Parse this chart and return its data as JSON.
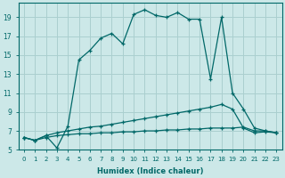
{
  "xlabel": "Humidex (Indice chaleur)",
  "background_color": "#cce8e8",
  "grid_color": "#aacfcf",
  "line_color": "#006868",
  "xlim": [
    -0.5,
    23.5
  ],
  "ylim": [
    5,
    20.5
  ],
  "xticks": [
    0,
    1,
    2,
    3,
    4,
    5,
    6,
    7,
    8,
    9,
    10,
    11,
    12,
    13,
    14,
    15,
    16,
    17,
    18,
    19,
    20,
    21,
    22,
    23
  ],
  "yticks": [
    5,
    7,
    9,
    11,
    13,
    15,
    17,
    19
  ],
  "series": [
    {
      "x": [
        0,
        1,
        2,
        3,
        4,
        5,
        6,
        7,
        8,
        9,
        10,
        11,
        12,
        13,
        14,
        15,
        16,
        17,
        18,
        19,
        20,
        21,
        22,
        23
      ],
      "y": [
        6.3,
        6.0,
        6.3,
        6.5,
        6.6,
        6.7,
        6.7,
        6.8,
        6.8,
        6.9,
        6.9,
        7.0,
        7.0,
        7.1,
        7.1,
        7.2,
        7.2,
        7.3,
        7.3,
        7.3,
        7.4,
        7.0,
        7.0,
        6.8
      ]
    },
    {
      "x": [
        0,
        1,
        2,
        3,
        4,
        5,
        6,
        7,
        8,
        9,
        10,
        11,
        12,
        13,
        14,
        15,
        16,
        17,
        18,
        19,
        20,
        21,
        22,
        23
      ],
      "y": [
        6.3,
        6.0,
        6.5,
        6.8,
        7.0,
        7.2,
        7.4,
        7.5,
        7.7,
        7.9,
        8.1,
        8.3,
        8.5,
        8.7,
        8.9,
        9.1,
        9.3,
        9.5,
        9.8,
        9.3,
        7.3,
        6.8,
        6.9,
        6.8
      ]
    },
    {
      "x": [
        0,
        1,
        2,
        3,
        4,
        5,
        6,
        7,
        8,
        9,
        10,
        11,
        12,
        13,
        14,
        15,
        16,
        17,
        18,
        19,
        20,
        21,
        22,
        23
      ],
      "y": [
        6.3,
        6.0,
        6.5,
        5.2,
        7.5,
        14.5,
        15.5,
        16.8,
        17.3,
        16.2,
        19.3,
        19.8,
        19.2,
        19.0,
        19.5,
        18.8,
        18.8,
        12.5,
        19.0,
        11.0,
        9.3,
        7.3,
        7.0,
        6.8
      ]
    }
  ]
}
